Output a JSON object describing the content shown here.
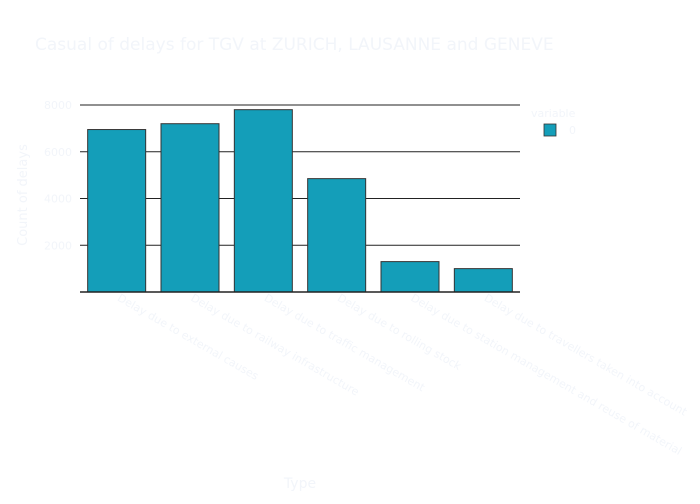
{
  "chart_data": {
    "type": "bar",
    "title": "Casual of delays for TGV at ZURICH, LAUSANNE and GENEVE",
    "xlabel": "Type",
    "ylabel": "Count of delays",
    "categories": [
      "Delay due to external causes",
      "Delay due to railway infrastructure",
      "Delay due to traffic management",
      "Delay due to rolling stock",
      "Delay due to station management and reuse of material",
      "Delay due to travellers taken into account"
    ],
    "series": [
      {
        "name": "0",
        "values": [
          6950,
          7200,
          7800,
          4850,
          1300,
          1000
        ]
      }
    ],
    "ylim": [
      0,
      8000
    ],
    "yticks": [
      2000,
      4000,
      6000,
      8000
    ],
    "ytick_labels": [
      "2000",
      "4000",
      "6000",
      "8000"
    ],
    "grid": true,
    "legend": {
      "title": "variable",
      "placement": "top-right"
    },
    "colors": {
      "bar_fill": "#149eb9",
      "bar_stroke": "#333333",
      "grid": "#222222",
      "axis": "#222222",
      "text": "#f2f5fa",
      "title": "#f2f5fa"
    }
  }
}
